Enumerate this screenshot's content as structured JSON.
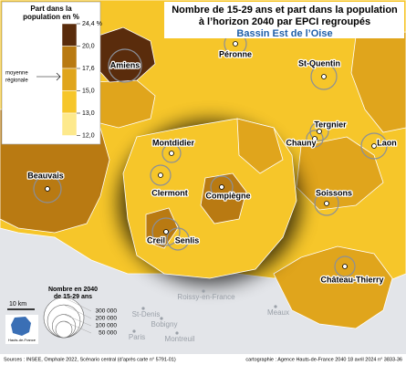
{
  "header": {
    "title_lines": [
      "Nombre de 15-29 ans et part dans la population",
      "à l’horizon 2040 par EPCI regroupés"
    ],
    "subtitle": "Bassin Est de l’Oise"
  },
  "legend": {
    "title_lines": [
      "Part dans la",
      "population en %"
    ],
    "breaks": [
      {
        "value": 24.4,
        "label": "24,4 %"
      },
      {
        "value": 20,
        "label": "20,0"
      },
      {
        "value": 17.6,
        "label": "17,6"
      },
      {
        "value": 15,
        "label": "15,0"
      },
      {
        "value": 13,
        "label": "13,0"
      },
      {
        "value": 12,
        "label": "12,0"
      }
    ],
    "colors": [
      "#5a2c0c",
      "#b97a12",
      "#e0a51c",
      "#f6c62a",
      "#fde98c"
    ],
    "average_lines": [
      "moyenne",
      "régionale"
    ]
  },
  "bubble_legend": {
    "title_lines": [
      "Nombre en 2040",
      "de 15-29 ans"
    ],
    "values": [
      300000,
      200000,
      100000,
      50000
    ],
    "labels": [
      "300 000",
      "200 000",
      "100 000",
      "50 000"
    ]
  },
  "scale": "10 km",
  "logo": "Hauts-de-France",
  "cities": [
    "Amiens",
    "Péronne",
    "St-Quentin",
    "Montdidier",
    "Tergnier",
    "Chauny",
    "Laon",
    "Beauvais",
    "Clermont",
    "Compiègne",
    "Soissons",
    "Creil",
    "Senlis",
    "Château-Thierry"
  ],
  "outside_places": [
    "Roissy-en-France",
    "Meaux",
    "St-Denis",
    "Bobigny",
    "Paris",
    "Montreuil"
  ],
  "footer": {
    "sources": "Sources : INSEE, Omphale 2022, Scénario central (d’après carte n° 5791-01)",
    "credits": "cartographie : Agence Hauts-de-France 2040    18 avril 2024    n° 3833-36"
  }
}
